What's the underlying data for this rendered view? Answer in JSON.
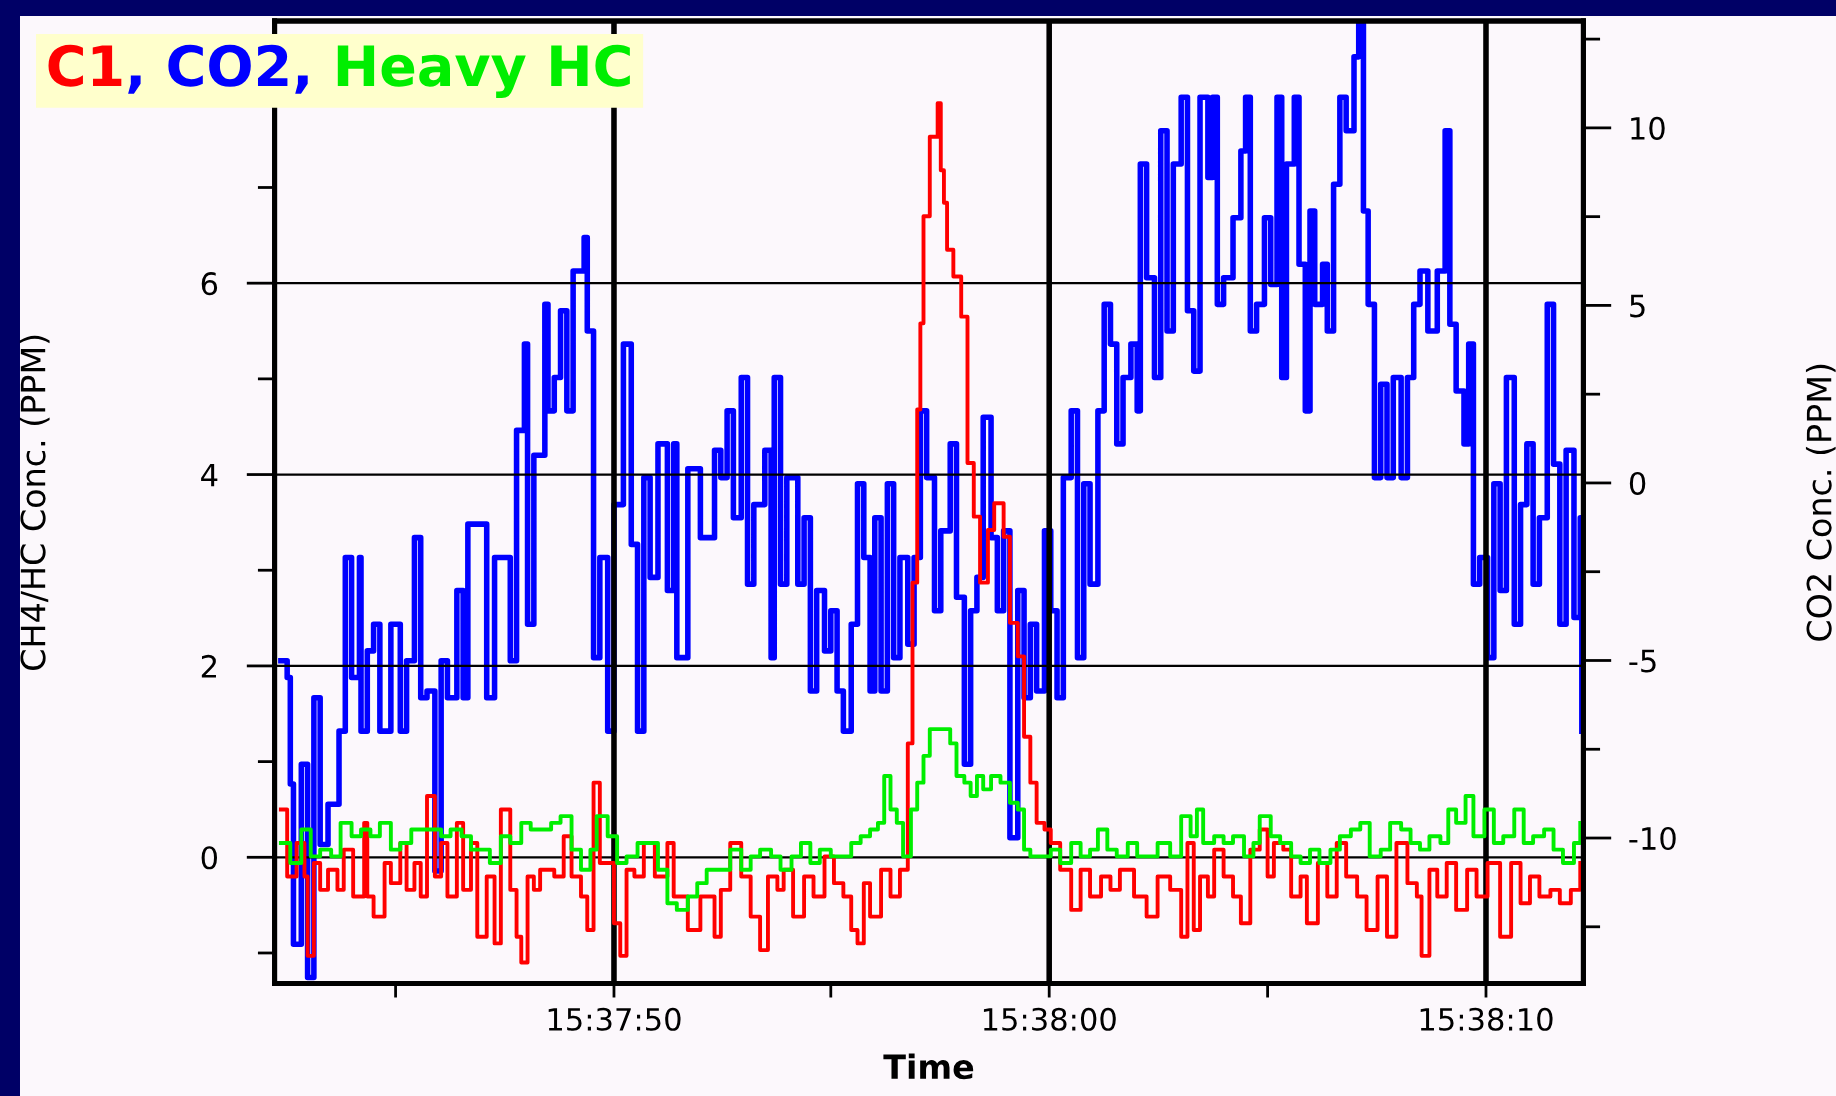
{
  "chart_data": {
    "type": "step",
    "title": "C1, CO2, Heavy HC",
    "xlabel": "Time",
    "ylabel": "CH4/HC Conc. (PPM)",
    "y2label": "CO2 Conc. (PPM)",
    "xlim": [
      15.6284,
      15.63673
    ],
    "xticks": [
      {
        "value": 15.62917,
        "label": null
      },
      {
        "value": 15.63056,
        "label": "15:37:50"
      },
      {
        "value": 15.63194,
        "label": null
      },
      {
        "value": 15.63333,
        "label": "15:38:00"
      },
      {
        "value": 15.63472,
        "label": null
      },
      {
        "value": 15.63611,
        "label": "15:38:10"
      }
    ],
    "ylim": [
      -1.32,
      8.74
    ],
    "yticks": [
      {
        "value": -1,
        "label": null
      },
      0,
      {
        "value": 1,
        "label": null
      },
      2,
      {
        "value": 3,
        "label": null
      },
      4,
      {
        "value": 5,
        "label": null
      },
      6,
      {
        "value": 7,
        "label": null
      }
    ],
    "y2lim": [
      -14.1,
      13.01
    ],
    "y2ticks": [
      {
        "value": -12.5,
        "label": null
      },
      -10,
      {
        "value": -7.5,
        "label": null
      },
      -5,
      {
        "value": -2.5,
        "label": null
      },
      0,
      {
        "value": 2.5,
        "label": null
      },
      5,
      {
        "value": 7.5,
        "label": null
      },
      10,
      {
        "value": 12.5,
        "label": null
      }
    ],
    "grid": true,
    "series": [
      {
        "color": "#ff0000",
        "x": [
          15.62844,
          15.62848,
          15.62854,
          15.62859,
          15.62861,
          15.62865,
          15.62869,
          15.62874,
          15.6288,
          15.62884,
          15.6289,
          15.62897,
          15.62899,
          15.62903,
          15.6291,
          15.62914,
          15.6292,
          15.62924,
          15.62929,
          15.62933,
          15.62937,
          15.62942,
          15.62946,
          15.6295,
          15.62956,
          15.6296,
          15.62965,
          15.62969,
          15.62975,
          15.6298,
          15.62984,
          15.6299,
          15.62994,
          15.62997,
          15.63001,
          15.63005,
          15.63009,
          15.63018,
          15.63024,
          15.63029,
          15.63035,
          15.63039,
          15.63043,
          15.63047,
          15.63052,
          15.63056,
          15.6306,
          15.63064,
          15.63069,
          15.63075,
          15.63082,
          15.6309,
          15.63094,
          15.63103,
          15.63111,
          15.6312,
          15.63124,
          15.6313,
          15.63137,
          15.63143,
          15.63149,
          15.63154,
          15.6316,
          15.63164,
          15.6317,
          15.63177,
          15.63183,
          15.6319,
          15.63196,
          15.63202,
          15.63207,
          15.63211,
          15.63215,
          15.63219,
          15.63226,
          15.63232,
          15.63238,
          15.63243,
          15.63246,
          15.63249,
          15.63251,
          15.63253,
          15.63257,
          15.63262,
          15.63264,
          15.63266,
          15.63268,
          15.63272,
          15.63277,
          15.63281,
          15.63285,
          15.63289,
          15.63294,
          15.63298,
          15.63304,
          15.63308,
          15.63313,
          15.63317,
          15.63321,
          15.63325,
          15.6333,
          15.63334,
          15.6334,
          15.63347,
          15.63353,
          15.63359,
          15.63366,
          15.63372,
          15.63378,
          15.63387,
          15.63395,
          15.63402,
          15.6341,
          15.63417,
          15.63421,
          15.63425,
          15.63429,
          15.63434,
          15.63438,
          15.63444,
          15.6345,
          15.63455,
          15.63461,
          15.63467,
          15.63472,
          15.63476,
          15.63482,
          15.63487,
          15.63493,
          15.63497,
          15.63504,
          15.6351,
          15.63516,
          15.63522,
          15.63529,
          15.63535,
          15.63542,
          15.63548,
          15.63554,
          15.63561,
          15.63567,
          15.6357,
          15.63575,
          15.6358,
          15.63586,
          15.63592,
          15.63599,
          15.63605,
          15.63612,
          15.6362,
          15.63627,
          15.63633,
          15.63639,
          15.63645,
          15.63652,
          15.63658,
          15.63665,
          15.63671
        ],
        "values": [
          0.5,
          -0.2,
          0.15,
          -0.2,
          -1.03,
          -0.06,
          -0.34,
          -0.13,
          -0.34,
          0.08,
          -0.41,
          0.36,
          -0.41,
          -0.62,
          -0.06,
          -0.27,
          0.15,
          -0.34,
          -0.06,
          -0.41,
          0.64,
          -0.2,
          0.15,
          -0.41,
          0.36,
          -0.34,
          0.15,
          -0.83,
          -0.2,
          -0.9,
          0.5,
          -0.34,
          -0.83,
          -1.1,
          -0.2,
          -0.34,
          -0.13,
          -0.2,
          0.22,
          -0.2,
          -0.41,
          -0.76,
          0.78,
          -0.06,
          -0.06,
          -0.69,
          -1.03,
          -0.13,
          -0.2,
          0.15,
          -0.2,
          0.15,
          -0.41,
          -0.76,
          -0.41,
          -0.83,
          -0.34,
          0.15,
          -0.2,
          -0.62,
          -0.97,
          -0.2,
          -0.34,
          -0.13,
          -0.62,
          -0.2,
          -0.41,
          0.01,
          -0.27,
          -0.41,
          -0.76,
          -0.9,
          -0.27,
          -0.62,
          -0.13,
          -0.41,
          -0.13,
          1.19,
          2.87,
          4.68,
          5.58,
          6.7,
          7.53,
          7.88,
          7.18,
          6.84,
          6.35,
          6.07,
          5.65,
          4.12,
          3.56,
          2.87,
          3.42,
          3.7,
          3.35,
          2.45,
          2.1,
          1.26,
          0.78,
          0.36,
          0.29,
          0.15,
          -0.13,
          -0.55,
          -0.13,
          -0.41,
          -0.2,
          -0.34,
          -0.13,
          -0.41,
          -0.62,
          -0.2,
          -0.34,
          -0.83,
          0.15,
          -0.76,
          -0.2,
          -0.41,
          0.08,
          -0.2,
          -0.41,
          -0.69,
          0.08,
          0.29,
          -0.2,
          0.15,
          0.08,
          -0.41,
          -0.2,
          -0.69,
          -0.06,
          -0.41,
          0.15,
          -0.2,
          -0.41,
          -0.76,
          -0.2,
          -0.83,
          0.15,
          -0.27,
          -0.41,
          -1.03,
          -0.13,
          -0.41,
          -0.06,
          -0.55,
          -0.13,
          -0.41,
          -0.06,
          -0.83,
          -0.06,
          -0.48,
          -0.2,
          -0.41,
          -0.34,
          -0.48,
          -0.34,
          -0.06
        ]
      },
      {
        "color": "#0000ff",
        "axis": "y2",
        "x": [
          15.62844,
          15.62848,
          15.6285,
          15.62852,
          15.62857,
          15.62861,
          15.62865,
          15.62869,
          15.62874,
          15.62878,
          15.62881,
          15.62885,
          15.62889,
          15.62894,
          15.62895,
          15.62899,
          15.62903,
          15.62907,
          15.62914,
          15.6292,
          15.62924,
          15.62929,
          15.62933,
          15.62937,
          15.62942,
          15.62946,
          15.6295,
          15.62956,
          15.6296,
          15.62963,
          15.62971,
          15.62975,
          15.6298,
          15.62986,
          15.6299,
          15.62994,
          15.62999,
          15.63001,
          15.63005,
          15.63012,
          15.63014,
          15.63018,
          15.63022,
          15.63026,
          15.6303,
          15.63037,
          15.63039,
          15.63043,
          15.63047,
          15.63052,
          15.63056,
          15.63062,
          15.63067,
          15.63071,
          15.63075,
          15.63079,
          15.63084,
          15.6309,
          15.63094,
          15.63096,
          15.63103,
          15.63111,
          15.6312,
          15.63124,
          15.63128,
          15.63132,
          15.63137,
          15.63141,
          15.63145,
          15.63152,
          15.63156,
          15.63158,
          15.63162,
          15.63166,
          15.63173,
          15.63177,
          15.63181,
          15.63185,
          15.6319,
          15.63194,
          15.63198,
          15.63202,
          15.63207,
          15.63211,
          15.63215,
          15.63219,
          15.63222,
          15.63226,
          15.6323,
          15.63234,
          15.63238,
          15.63243,
          15.63247,
          15.63251,
          15.63255,
          15.6326,
          15.63264,
          15.6327,
          15.63274,
          15.63279,
          15.63283,
          15.63287,
          15.63291,
          15.63296,
          15.633,
          15.63304,
          15.63308,
          15.63313,
          15.63317,
          15.63321,
          15.63325,
          15.6333,
          15.63334,
          15.63338,
          15.63342,
          15.63347,
          15.63351,
          15.63355,
          15.63359,
          15.63364,
          15.63368,
          15.63372,
          15.63376,
          15.6338,
          15.63385,
          15.63389,
          15.63391,
          15.63395,
          15.634,
          15.63404,
          15.63408,
          15.63412,
          15.63417,
          15.63421,
          15.63425,
          15.63429,
          15.63434,
          15.63437,
          15.6344,
          15.63444,
          15.6345,
          15.63455,
          15.63458,
          15.63461,
          15.63465,
          15.6347,
          15.63474,
          15.63478,
          15.63481,
          15.63484,
          15.63489,
          15.63492,
          15.63496,
          15.63499,
          15.63502,
          15.63507,
          15.6351,
          15.63514,
          15.63518,
          15.63522,
          15.63527,
          15.6353,
          15.63533,
          15.63536,
          15.6354,
          15.63544,
          15.63548,
          15.63552,
          15.63557,
          15.63561,
          15.63565,
          15.63569,
          15.63574,
          15.6358,
          15.63585,
          15.63588,
          15.63592,
          15.63597,
          15.636,
          15.63603,
          15.63607,
          15.63612,
          15.63616,
          15.6362,
          15.63624,
          15.63629,
          15.63633,
          15.63637,
          15.63641,
          15.63645,
          15.6365,
          15.63654,
          15.63658,
          15.63662,
          15.63667,
          15.63671,
          15.63672
        ],
        "values": [
          -5.01,
          -5.48,
          -8.48,
          -12.99,
          -7.92,
          -13.93,
          -6.05,
          -10.18,
          -9.05,
          -9.05,
          -6.99,
          -2.1,
          -5.48,
          -2.1,
          -6.99,
          -4.73,
          -3.98,
          -6.99,
          -3.98,
          -6.99,
          -5.01,
          -1.54,
          -6.05,
          -5.86,
          -10.93,
          -5.01,
          -6.05,
          -3.03,
          -6.05,
          -1.16,
          -1.16,
          -6.05,
          -2.1,
          -2.1,
          -5.01,
          1.48,
          3.91,
          -3.98,
          0.78,
          5.03,
          2.03,
          2.97,
          4.85,
          2.03,
          5.97,
          6.91,
          4.28,
          -4.92,
          -2.1,
          -6.99,
          -0.61,
          3.91,
          -1.73,
          -6.99,
          0.15,
          -2.66,
          1.1,
          -3.03,
          1.1,
          -4.92,
          0.4,
          -1.54,
          0.92,
          0.15,
          2.03,
          -0.98,
          2.97,
          -2.85,
          -0.61,
          0.92,
          -4.92,
          2.97,
          -2.85,
          0.15,
          -2.85,
          -0.98,
          -5.86,
          -3.03,
          -4.73,
          -3.6,
          -5.86,
          -6.99,
          -3.98,
          -0.02,
          -2.1,
          -5.86,
          -0.98,
          -5.86,
          -0.02,
          -4.92,
          -2.1,
          -4.54,
          -2.1,
          2.03,
          0.15,
          -3.6,
          -1.35,
          1.1,
          -3.22,
          -7.92,
          -3.6,
          -2.66,
          1.85,
          -1.54,
          -3.6,
          -1.35,
          -9.99,
          -3.03,
          -6.05,
          -3.98,
          -5.86,
          -1.35,
          -3.6,
          -6.05,
          0.15,
          2.03,
          -4.92,
          -0.02,
          -2.85,
          2.03,
          5.03,
          3.91,
          1.1,
          2.97,
          3.91,
          2.03,
          8.98,
          5.78,
          2.97,
          9.92,
          4.28,
          8.98,
          10.86,
          4.85,
          3.15,
          10.86,
          8.6,
          10.86,
          5.03,
          5.78,
          7.47,
          9.35,
          10.86,
          4.28,
          5.03,
          7.47,
          5.59,
          10.86,
          2.97,
          8.98,
          10.86,
          6.16,
          2.03,
          7.66,
          5.03,
          6.16,
          4.28,
          8.41,
          10.86,
          9.92,
          12.0,
          12.92,
          7.66,
          5.03,
          0.15,
          2.78,
          0.15,
          2.97,
          0.15,
          2.97,
          5.03,
          5.97,
          4.28,
          5.97,
          9.92,
          4.47,
          2.59,
          1.1,
          3.91,
          -2.85,
          -2.1,
          -4.92,
          -0.02,
          -3.03,
          2.97,
          -3.98,
          -0.61,
          1.1,
          -2.85,
          -0.98,
          5.03,
          0.53,
          -3.98,
          0.92,
          -3.79,
          -0.98,
          -6.99
        ]
      },
      {
        "color": "#00ee00",
        "x": [
          15.62844,
          15.6285,
          15.62857,
          15.62863,
          15.62869,
          15.62876,
          15.62882,
          15.62889,
          15.62895,
          15.62901,
          15.62907,
          15.62914,
          15.6292,
          15.62927,
          15.62933,
          15.62939,
          15.62946,
          15.62952,
          15.62959,
          15.62965,
          15.62971,
          15.62977,
          15.62984,
          15.6299,
          15.62997,
          15.63003,
          15.63009,
          15.63016,
          15.63022,
          15.63029,
          15.63035,
          15.63041,
          15.63045,
          15.63052,
          15.63058,
          15.63064,
          15.63071,
          15.63077,
          15.63084,
          15.6309,
          15.63096,
          15.63103,
          15.63109,
          15.63115,
          15.63122,
          15.6313,
          15.63137,
          15.63143,
          15.63149,
          15.63156,
          15.63162,
          15.63169,
          15.63175,
          15.63181,
          15.63187,
          15.63194,
          15.632,
          15.63207,
          15.63213,
          15.63219,
          15.63224,
          15.63228,
          15.63232,
          15.63236,
          15.6324,
          15.63245,
          15.63249,
          15.63253,
          15.63257,
          15.63264,
          15.6327,
          15.63274,
          15.63279,
          15.63283,
          15.63287,
          15.63291,
          15.63296,
          15.63302,
          15.63308,
          15.63313,
          15.63317,
          15.63321,
          15.63327,
          15.63334,
          15.6334,
          15.63347,
          15.63353,
          15.63359,
          15.63364,
          15.6337,
          15.63376,
          15.63383,
          15.63389,
          15.63395,
          15.63402,
          15.6341,
          15.63417,
          15.63423,
          15.63427,
          15.63431,
          15.63438,
          15.63444,
          15.6345,
          15.63457,
          15.63463,
          15.63467,
          15.63474,
          15.6348,
          15.63487,
          15.63493,
          15.63499,
          15.63505,
          15.63512,
          15.63518,
          15.63525,
          15.63531,
          15.63537,
          15.63544,
          15.6355,
          15.63557,
          15.63563,
          15.63569,
          15.63575,
          15.63582,
          15.63587,
          15.63592,
          15.63598,
          15.63603,
          15.6361,
          15.63616,
          15.63622,
          15.63629,
          15.63635,
          15.63641,
          15.63648,
          15.63654,
          15.6366,
          15.63667,
          15.63671
        ],
        "values": [
          0.15,
          -0.06,
          0.29,
          0.01,
          0.08,
          0.01,
          0.36,
          0.22,
          0.29,
          0.22,
          0.36,
          0.08,
          0.15,
          0.29,
          0.29,
          0.29,
          0.22,
          0.29,
          0.22,
          0.08,
          0.08,
          -0.06,
          0.22,
          0.15,
          0.36,
          0.29,
          0.29,
          0.36,
          0.43,
          0.08,
          -0.13,
          0.08,
          0.43,
          0.22,
          -0.06,
          0.01,
          0.15,
          0.15,
          -0.13,
          -0.48,
          -0.55,
          -0.41,
          -0.27,
          -0.13,
          -0.13,
          0.08,
          -0.13,
          0.01,
          0.08,
          0.01,
          -0.13,
          0.01,
          0.15,
          -0.06,
          0.08,
          0.01,
          0.01,
          0.15,
          0.22,
          0.29,
          0.36,
          0.85,
          0.5,
          0.36,
          0.01,
          0.5,
          0.78,
          1.06,
          1.34,
          1.34,
          1.19,
          0.85,
          0.78,
          0.64,
          0.85,
          0.71,
          0.85,
          0.78,
          0.57,
          0.5,
          0.08,
          0.01,
          0.01,
          0.08,
          -0.06,
          0.15,
          0.01,
          0.08,
          0.29,
          0.08,
          0.01,
          0.15,
          0.01,
          0.01,
          0.15,
          0.01,
          0.43,
          0.22,
          0.5,
          0.15,
          0.22,
          0.15,
          0.22,
          0.01,
          0.15,
          0.43,
          0.22,
          0.15,
          0.01,
          -0.06,
          0.08,
          -0.06,
          0.08,
          0.22,
          0.29,
          0.36,
          0.01,
          0.08,
          0.36,
          0.29,
          0.15,
          0.08,
          0.22,
          0.15,
          0.5,
          0.36,
          0.64,
          0.22,
          0.5,
          0.15,
          0.22,
          0.5,
          0.15,
          0.22,
          0.29,
          0.08,
          -0.06,
          0.15,
          0.36
        ]
      }
    ]
  }
}
